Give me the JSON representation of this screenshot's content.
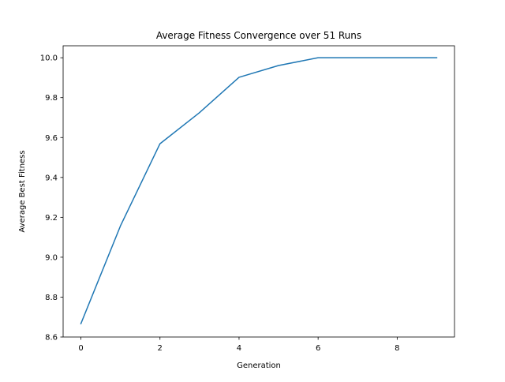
{
  "chart_data": {
    "type": "line",
    "title": "Average Fitness Convergence over 51 Runs",
    "xlabel": "Generation",
    "ylabel": "Average Best Fitness",
    "xlim": [
      -0.45,
      9.45
    ],
    "ylim": [
      8.6,
      10.06
    ],
    "x_ticks": [
      0,
      2,
      4,
      6,
      8
    ],
    "y_ticks": [
      8.6,
      8.8,
      9.0,
      9.2,
      9.4,
      9.6,
      9.8,
      10.0
    ],
    "x_tick_labels": [
      "0",
      "2",
      "4",
      "6",
      "8"
    ],
    "y_tick_labels": [
      "8.6",
      "8.8",
      "9.0",
      "9.2",
      "9.4",
      "9.6",
      "9.8",
      "10.0"
    ],
    "grid": false,
    "legend": "none",
    "series": [
      {
        "color": "#1f77b4",
        "x": [
          0,
          1,
          2,
          3,
          4,
          5,
          6,
          7,
          8,
          9
        ],
        "y": [
          8.667,
          9.157,
          9.569,
          9.725,
          9.902,
          9.961,
          10.0,
          10.0,
          10.0,
          10.0
        ]
      }
    ]
  }
}
